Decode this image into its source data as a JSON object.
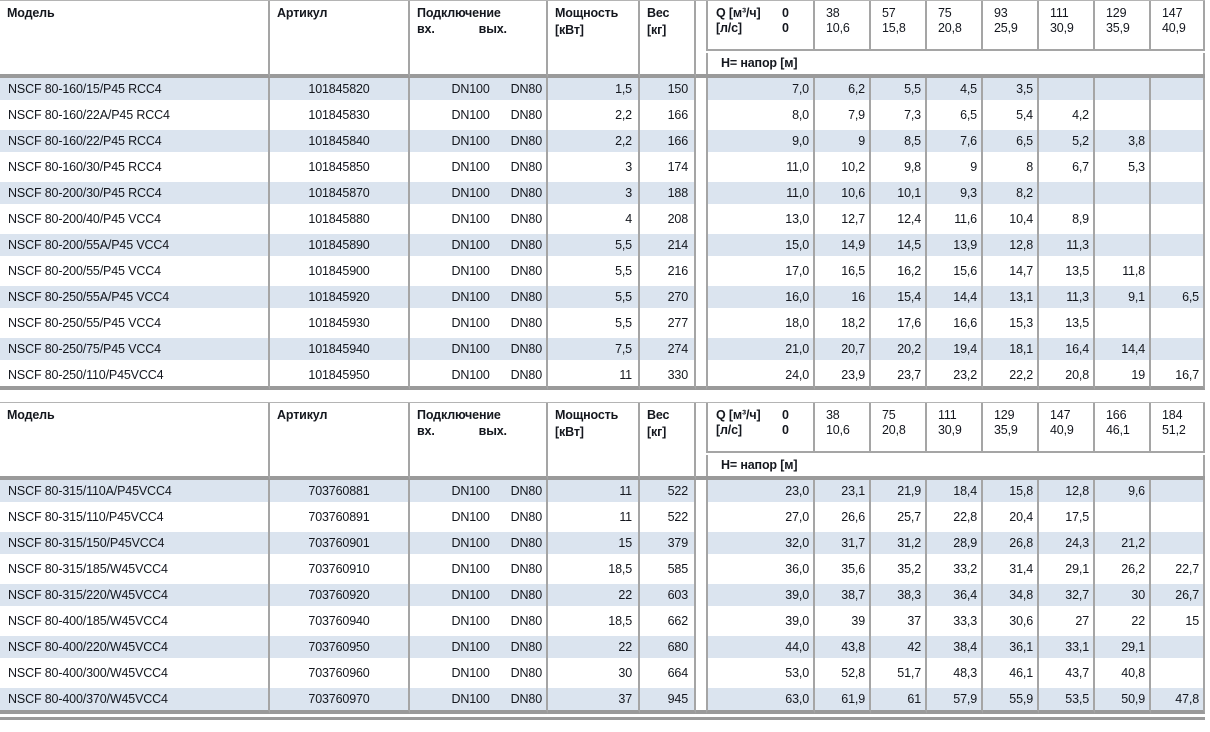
{
  "colors": {
    "stripe": "#dbe4ef",
    "line": "#a5a5a5",
    "thick": "#9a9a9a",
    "txt": "#14171e"
  },
  "tables": [
    {
      "columns": {
        "model": "Модель",
        "article": "Артикул",
        "connection": "Подключение",
        "conn_in": "вх.",
        "conn_out": "вых.",
        "power": "Мощность",
        "power_unit": "[кВт]",
        "weight": "Вес",
        "weight_unit": "[кг]"
      },
      "q_label_m3h": "Q [м³/ч]",
      "q_label_ls": "[л/с]",
      "q_first_m3h": "0",
      "q_first_ls": "0",
      "q_columns": [
        {
          "m3h": "38",
          "ls": "10,6"
        },
        {
          "m3h": "57",
          "ls": "15,8"
        },
        {
          "m3h": "75",
          "ls": "20,8"
        },
        {
          "m3h": "93",
          "ls": "25,9"
        },
        {
          "m3h": "111",
          "ls": "30,9"
        },
        {
          "m3h": "129",
          "ls": "35,9"
        },
        {
          "m3h": "147",
          "ls": "40,9"
        }
      ],
      "h_label": "H= напор [м]",
      "rows": [
        {
          "model": "NSCF 80-160/15/P45 RCC4",
          "article": "101845820",
          "conn_in": "DN100",
          "conn_out": "DN80",
          "power": "1,5",
          "weight": "150",
          "h": [
            "7,0",
            "6,2",
            "5,5",
            "4,5",
            "3,5",
            "",
            "",
            ""
          ]
        },
        {
          "model": "NSCF 80-160/22A/P45 RCC4",
          "article": "101845830",
          "conn_in": "DN100",
          "conn_out": "DN80",
          "power": "2,2",
          "weight": "166",
          "h": [
            "8,0",
            "7,9",
            "7,3",
            "6,5",
            "5,4",
            "4,2",
            "",
            ""
          ]
        },
        {
          "model": "NSCF 80-160/22/P45 RCC4",
          "article": "101845840",
          "conn_in": "DN100",
          "conn_out": "DN80",
          "power": "2,2",
          "weight": "166",
          "h": [
            "9,0",
            "9",
            "8,5",
            "7,6",
            "6,5",
            "5,2",
            "3,8",
            ""
          ]
        },
        {
          "model": "NSCF 80-160/30/P45 RCC4",
          "article": "101845850",
          "conn_in": "DN100",
          "conn_out": "DN80",
          "power": "3",
          "weight": "174",
          "h": [
            "11,0",
            "10,2",
            "9,8",
            "9",
            "8",
            "6,7",
            "5,3",
            ""
          ]
        },
        {
          "model": "NSCF 80-200/30/P45 RCC4",
          "article": "101845870",
          "conn_in": "DN100",
          "conn_out": "DN80",
          "power": "3",
          "weight": "188",
          "h": [
            "11,0",
            "10,6",
            "10,1",
            "9,3",
            "8,2",
            "",
            "",
            ""
          ]
        },
        {
          "model": "NSCF 80-200/40/P45 VCC4",
          "article": "101845880",
          "conn_in": "DN100",
          "conn_out": "DN80",
          "power": "4",
          "weight": "208",
          "h": [
            "13,0",
            "12,7",
            "12,4",
            "11,6",
            "10,4",
            "8,9",
            "",
            ""
          ]
        },
        {
          "model": "NSCF 80-200/55A/P45 VCC4",
          "article": "101845890",
          "conn_in": "DN100",
          "conn_out": "DN80",
          "power": "5,5",
          "weight": "214",
          "h": [
            "15,0",
            "14,9",
            "14,5",
            "13,9",
            "12,8",
            "11,3",
            "",
            ""
          ]
        },
        {
          "model": "NSCF 80-200/55/P45 VCC4",
          "article": "101845900",
          "conn_in": "DN100",
          "conn_out": "DN80",
          "power": "5,5",
          "weight": "216",
          "h": [
            "17,0",
            "16,5",
            "16,2",
            "15,6",
            "14,7",
            "13,5",
            "11,8",
            ""
          ]
        },
        {
          "model": "NSCF 80-250/55A/P45 VCC4",
          "article": "101845920",
          "conn_in": "DN100",
          "conn_out": "DN80",
          "power": "5,5",
          "weight": "270",
          "h": [
            "16,0",
            "16",
            "15,4",
            "14,4",
            "13,1",
            "11,3",
            "9,1",
            "6,5"
          ]
        },
        {
          "model": "NSCF 80-250/55/P45 VCC4",
          "article": "101845930",
          "conn_in": "DN100",
          "conn_out": "DN80",
          "power": "5,5",
          "weight": "277",
          "h": [
            "18,0",
            "18,2",
            "17,6",
            "16,6",
            "15,3",
            "13,5",
            "",
            ""
          ]
        },
        {
          "model": "NSCF 80-250/75/P45 VCC4",
          "article": "101845940",
          "conn_in": "DN100",
          "conn_out": "DN80",
          "power": "7,5",
          "weight": "274",
          "h": [
            "21,0",
            "20,7",
            "20,2",
            "19,4",
            "18,1",
            "16,4",
            "14,4",
            ""
          ]
        },
        {
          "model": "NSCF 80-250/110/P45VCC4",
          "article": "101845950",
          "conn_in": "DN100",
          "conn_out": "DN80",
          "power": "11",
          "weight": "330",
          "h": [
            "24,0",
            "23,9",
            "23,7",
            "23,2",
            "22,2",
            "20,8",
            "19",
            "16,7"
          ]
        }
      ]
    },
    {
      "columns": {
        "model": "Модель",
        "article": "Артикул",
        "connection": "Подключение",
        "conn_in": "вх.",
        "conn_out": "вых.",
        "power": "Мощность",
        "power_unit": "[кВт]",
        "weight": "Вес",
        "weight_unit": "[кг]"
      },
      "q_label_m3h": "Q [м³/ч]",
      "q_label_ls": "[л/с]",
      "q_first_m3h": "0",
      "q_first_ls": "0",
      "q_columns": [
        {
          "m3h": "38",
          "ls": "10,6"
        },
        {
          "m3h": "75",
          "ls": "20,8"
        },
        {
          "m3h": "111",
          "ls": "30,9"
        },
        {
          "m3h": "129",
          "ls": "35,9"
        },
        {
          "m3h": "147",
          "ls": "40,9"
        },
        {
          "m3h": "166",
          "ls": "46,1"
        },
        {
          "m3h": "184",
          "ls": "51,2"
        }
      ],
      "h_label": "H= напор [м]",
      "rows": [
        {
          "model": "NSCF 80-315/110A/P45VCC4",
          "article": "703760881",
          "conn_in": "DN100",
          "conn_out": "DN80",
          "power": "11",
          "weight": "522",
          "h": [
            "23,0",
            "23,1",
            "21,9",
            "18,4",
            "15,8",
            "12,8",
            "9,6",
            ""
          ]
        },
        {
          "model": "NSCF 80-315/110/P45VCC4",
          "article": "703760891",
          "conn_in": "DN100",
          "conn_out": "DN80",
          "power": "11",
          "weight": "522",
          "h": [
            "27,0",
            "26,6",
            "25,7",
            "22,8",
            "20,4",
            "17,5",
            "",
            ""
          ]
        },
        {
          "model": "NSCF 80-315/150/P45VCC4",
          "article": "703760901",
          "conn_in": "DN100",
          "conn_out": "DN80",
          "power": "15",
          "weight": "379",
          "h": [
            "32,0",
            "31,7",
            "31,2",
            "28,9",
            "26,8",
            "24,3",
            "21,2",
            ""
          ]
        },
        {
          "model": "NSCF 80-315/185/W45VCC4",
          "article": "703760910",
          "conn_in": "DN100",
          "conn_out": "DN80",
          "power": "18,5",
          "weight": "585",
          "h": [
            "36,0",
            "35,6",
            "35,2",
            "33,2",
            "31,4",
            "29,1",
            "26,2",
            "22,7"
          ]
        },
        {
          "model": "NSCF 80-315/220/W45VCC4",
          "article": "703760920",
          "conn_in": "DN100",
          "conn_out": "DN80",
          "power": "22",
          "weight": "603",
          "h": [
            "39,0",
            "38,7",
            "38,3",
            "36,4",
            "34,8",
            "32,7",
            "30",
            "26,7"
          ]
        },
        {
          "model": "NSCF 80-400/185/W45VCC4",
          "article": "703760940",
          "conn_in": "DN100",
          "conn_out": "DN80",
          "power": "18,5",
          "weight": "662",
          "h": [
            "39,0",
            "39",
            "37",
            "33,3",
            "30,6",
            "27",
            "22",
            "15"
          ]
        },
        {
          "model": "NSCF 80-400/220/W45VCC4",
          "article": "703760950",
          "conn_in": "DN100",
          "conn_out": "DN80",
          "power": "22",
          "weight": "680",
          "h": [
            "44,0",
            "43,8",
            "42",
            "38,4",
            "36,1",
            "33,1",
            "29,1",
            ""
          ]
        },
        {
          "model": "NSCF 80-400/300/W45VCC4",
          "article": "703760960",
          "conn_in": "DN100",
          "conn_out": "DN80",
          "power": "30",
          "weight": "664",
          "h": [
            "53,0",
            "52,8",
            "51,7",
            "48,3",
            "46,1",
            "43,7",
            "40,8",
            ""
          ]
        },
        {
          "model": "NSCF 80-400/370/W45VCC4",
          "article": "703760970",
          "conn_in": "DN100",
          "conn_out": "DN80",
          "power": "37",
          "weight": "945",
          "h": [
            "63,0",
            "61,9",
            "61",
            "57,9",
            "55,9",
            "53,5",
            "50,9",
            "47,8"
          ]
        }
      ]
    }
  ]
}
